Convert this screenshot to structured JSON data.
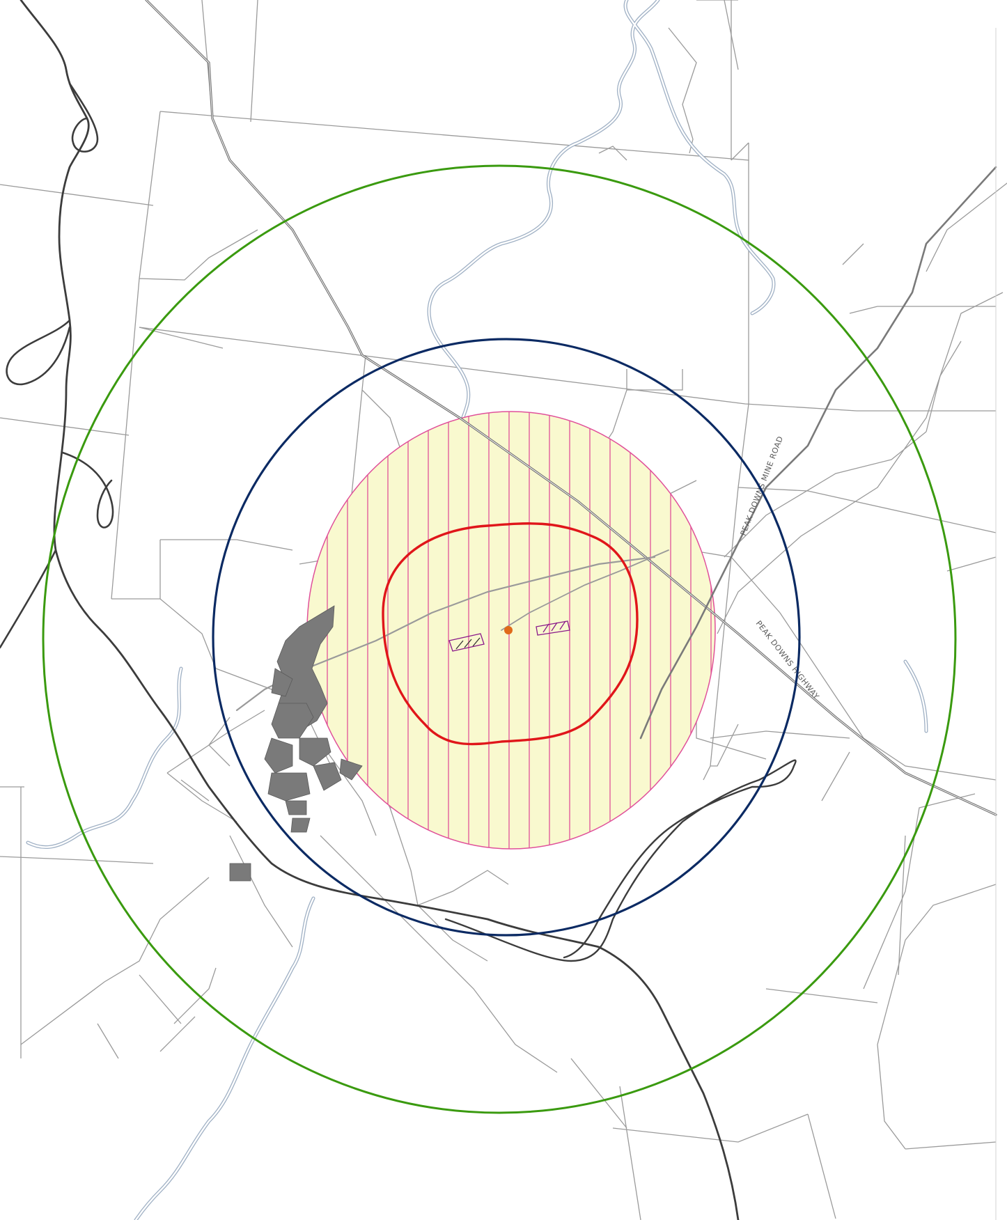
{
  "map": {
    "road_labels": {
      "highway": "PEAK DOWNS HIGHWAY",
      "mine_road": "PEAK DOWNS MINE ROAD"
    },
    "colors": {
      "background": "#ffffff",
      "parcel_line": "#9a9a9a",
      "major_road": "#3c3c3c",
      "highway": "#6e6e6e",
      "creek": "#9fb0c4",
      "creek_fill": "#ffffff",
      "outer_circle": "#3a9a0f",
      "middle_circle": "#0b2a63",
      "inner_contour": "#e0161a",
      "hatched_zone_fill": "#f9f9cf",
      "hatched_zone_lines": "#e0509a",
      "site_marker": "#e06a1a",
      "town_blocks": "#7a7a7a"
    },
    "icons": {
      "site_marker": "site-point-icon"
    }
  }
}
